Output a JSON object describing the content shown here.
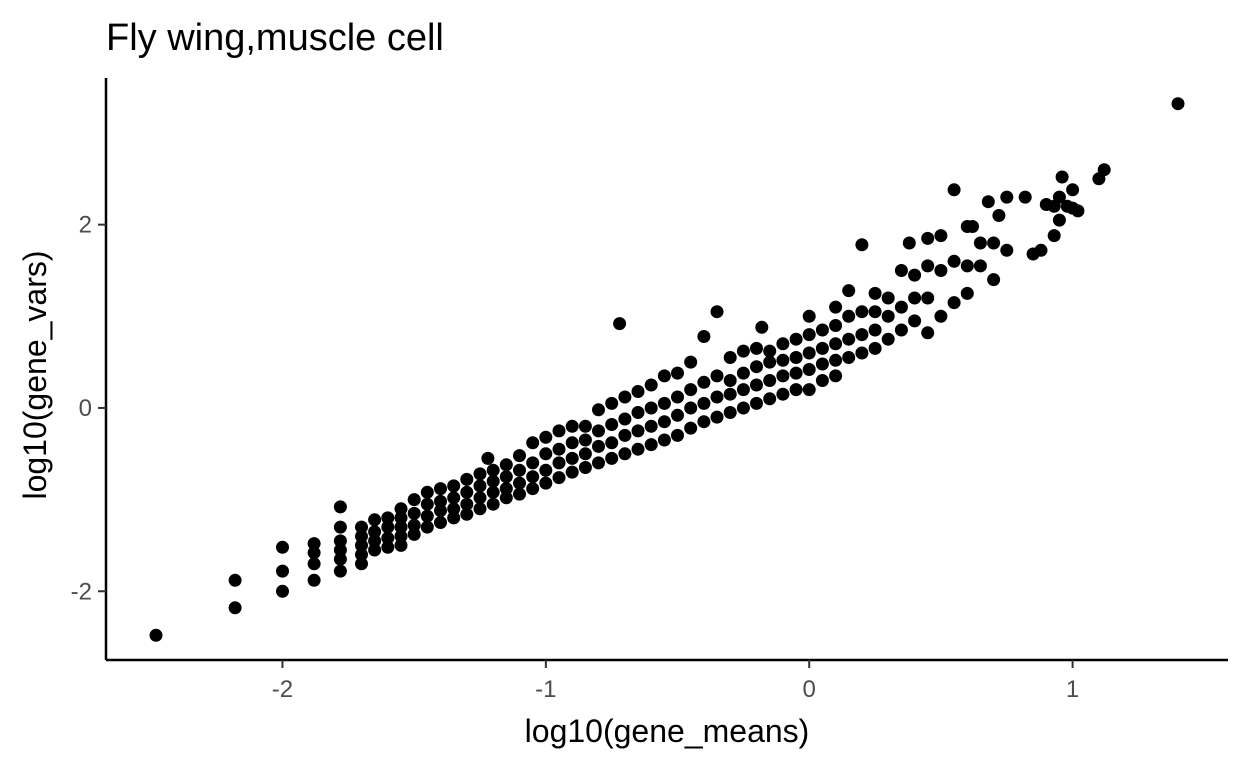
{
  "chart_data": {
    "type": "scatter",
    "title": "Fly wing,muscle cell",
    "xlabel": "log10(gene_means)",
    "ylabel": "log10(gene_vars)",
    "xlim": [
      -2.67,
      1.59
    ],
    "ylim": [
      -2.75,
      3.6
    ],
    "x_ticks": [
      -2,
      -1,
      0,
      1
    ],
    "y_ticks": [
      -2,
      0,
      2
    ],
    "x_tick_labels": [
      "-2",
      "-1",
      "0",
      "1"
    ],
    "y_tick_labels": [
      "-2",
      "0",
      "2"
    ],
    "grid": false,
    "legend": "none",
    "point_color": "#000000",
    "series": [
      {
        "points": [
          [
            -2.48,
            -2.48
          ],
          [
            -2.18,
            -1.88
          ],
          [
            -2.18,
            -2.18
          ],
          [
            -2.0,
            -1.52
          ],
          [
            -2.0,
            -1.78
          ],
          [
            -2.0,
            -2.0
          ],
          [
            -1.88,
            -1.48
          ],
          [
            -1.88,
            -1.58
          ],
          [
            -1.88,
            -1.7
          ],
          [
            -1.88,
            -1.88
          ],
          [
            -1.78,
            -1.08
          ],
          [
            -1.78,
            -1.3
          ],
          [
            -1.78,
            -1.45
          ],
          [
            -1.78,
            -1.55
          ],
          [
            -1.78,
            -1.65
          ],
          [
            -1.78,
            -1.78
          ],
          [
            -1.7,
            -1.3
          ],
          [
            -1.7,
            -1.4
          ],
          [
            -1.7,
            -1.5
          ],
          [
            -1.7,
            -1.6
          ],
          [
            -1.7,
            -1.7
          ],
          [
            -1.65,
            -1.22
          ],
          [
            -1.65,
            -1.35
          ],
          [
            -1.65,
            -1.45
          ],
          [
            -1.65,
            -1.55
          ],
          [
            -1.6,
            -1.2
          ],
          [
            -1.6,
            -1.3
          ],
          [
            -1.6,
            -1.42
          ],
          [
            -1.6,
            -1.52
          ],
          [
            -1.55,
            -1.1
          ],
          [
            -1.55,
            -1.2
          ],
          [
            -1.55,
            -1.3
          ],
          [
            -1.55,
            -1.4
          ],
          [
            -1.55,
            -1.5
          ],
          [
            -1.5,
            -1.0
          ],
          [
            -1.5,
            -1.15
          ],
          [
            -1.5,
            -1.28
          ],
          [
            -1.5,
            -1.38
          ],
          [
            -1.45,
            -0.92
          ],
          [
            -1.45,
            -1.05
          ],
          [
            -1.45,
            -1.18
          ],
          [
            -1.45,
            -1.3
          ],
          [
            -1.4,
            -0.88
          ],
          [
            -1.4,
            -1.02
          ],
          [
            -1.4,
            -1.12
          ],
          [
            -1.4,
            -1.25
          ],
          [
            -1.35,
            -0.85
          ],
          [
            -1.35,
            -0.98
          ],
          [
            -1.35,
            -1.1
          ],
          [
            -1.35,
            -1.2
          ],
          [
            -1.3,
            -0.78
          ],
          [
            -1.3,
            -0.92
          ],
          [
            -1.3,
            -1.05
          ],
          [
            -1.3,
            -1.16
          ],
          [
            -1.25,
            -0.72
          ],
          [
            -1.25,
            -0.85
          ],
          [
            -1.25,
            -0.98
          ],
          [
            -1.25,
            -1.1
          ],
          [
            -1.2,
            -0.68
          ],
          [
            -1.2,
            -0.8
          ],
          [
            -1.2,
            -0.92
          ],
          [
            -1.2,
            -1.05
          ],
          [
            -1.22,
            -0.55
          ],
          [
            -1.15,
            -0.62
          ],
          [
            -1.15,
            -0.75
          ],
          [
            -1.15,
            -0.88
          ],
          [
            -1.15,
            -0.98
          ],
          [
            -1.1,
            -0.52
          ],
          [
            -1.1,
            -0.68
          ],
          [
            -1.1,
            -0.82
          ],
          [
            -1.1,
            -0.94
          ],
          [
            -1.05,
            -0.38
          ],
          [
            -1.05,
            -0.6
          ],
          [
            -1.05,
            -0.75
          ],
          [
            -1.05,
            -0.88
          ],
          [
            -1.0,
            -0.32
          ],
          [
            -1.0,
            -0.5
          ],
          [
            -1.0,
            -0.68
          ],
          [
            -1.0,
            -0.82
          ],
          [
            -0.95,
            -0.25
          ],
          [
            -0.95,
            -0.45
          ],
          [
            -0.95,
            -0.6
          ],
          [
            -0.95,
            -0.76
          ],
          [
            -0.9,
            -0.2
          ],
          [
            -0.9,
            -0.38
          ],
          [
            -0.9,
            -0.55
          ],
          [
            -0.9,
            -0.7
          ],
          [
            -0.85,
            -0.2
          ],
          [
            -0.85,
            -0.35
          ],
          [
            -0.85,
            -0.5
          ],
          [
            -0.85,
            -0.65
          ],
          [
            -0.8,
            -0.02
          ],
          [
            -0.8,
            -0.25
          ],
          [
            -0.8,
            -0.42
          ],
          [
            -0.8,
            -0.6
          ],
          [
            -0.75,
            0.05
          ],
          [
            -0.75,
            -0.18
          ],
          [
            -0.75,
            -0.38
          ],
          [
            -0.75,
            -0.55
          ],
          [
            -0.72,
            0.92
          ],
          [
            -0.7,
            0.12
          ],
          [
            -0.7,
            -0.12
          ],
          [
            -0.7,
            -0.3
          ],
          [
            -0.7,
            -0.5
          ],
          [
            -0.65,
            0.18
          ],
          [
            -0.65,
            -0.05
          ],
          [
            -0.65,
            -0.25
          ],
          [
            -0.65,
            -0.45
          ],
          [
            -0.6,
            0.25
          ],
          [
            -0.6,
            0.0
          ],
          [
            -0.6,
            -0.2
          ],
          [
            -0.6,
            -0.4
          ],
          [
            -0.55,
            0.35
          ],
          [
            -0.55,
            0.05
          ],
          [
            -0.55,
            -0.15
          ],
          [
            -0.55,
            -0.35
          ],
          [
            -0.5,
            0.38
          ],
          [
            -0.5,
            0.12
          ],
          [
            -0.5,
            -0.08
          ],
          [
            -0.5,
            -0.3
          ],
          [
            -0.45,
            0.5
          ],
          [
            -0.45,
            0.2
          ],
          [
            -0.45,
            0.0
          ],
          [
            -0.45,
            -0.22
          ],
          [
            -0.4,
            0.78
          ],
          [
            -0.4,
            0.28
          ],
          [
            -0.4,
            0.05
          ],
          [
            -0.4,
            -0.15
          ],
          [
            -0.35,
            1.05
          ],
          [
            -0.35,
            0.35
          ],
          [
            -0.35,
            0.12
          ],
          [
            -0.35,
            -0.1
          ],
          [
            -0.3,
            0.55
          ],
          [
            -0.3,
            0.3
          ],
          [
            -0.3,
            0.15
          ],
          [
            -0.3,
            -0.05
          ],
          [
            -0.25,
            0.62
          ],
          [
            -0.25,
            0.38
          ],
          [
            -0.25,
            0.2
          ],
          [
            -0.25,
            0.0
          ],
          [
            -0.2,
            0.65
          ],
          [
            -0.2,
            0.45
          ],
          [
            -0.2,
            0.25
          ],
          [
            -0.2,
            0.05
          ],
          [
            -0.18,
            0.88
          ],
          [
            -0.15,
            0.62
          ],
          [
            -0.15,
            0.5
          ],
          [
            -0.15,
            0.3
          ],
          [
            -0.15,
            0.1
          ],
          [
            -0.1,
            0.7
          ],
          [
            -0.1,
            0.52
          ],
          [
            -0.1,
            0.35
          ],
          [
            -0.1,
            0.15
          ],
          [
            -0.05,
            0.75
          ],
          [
            -0.05,
            0.55
          ],
          [
            -0.05,
            0.38
          ],
          [
            -0.05,
            0.2
          ],
          [
            0.0,
            1.0
          ],
          [
            0.0,
            0.8
          ],
          [
            0.0,
            0.6
          ],
          [
            0.0,
            0.42
          ],
          [
            0.0,
            0.2
          ],
          [
            0.05,
            0.85
          ],
          [
            0.05,
            0.65
          ],
          [
            0.05,
            0.48
          ],
          [
            0.05,
            0.3
          ],
          [
            0.1,
            1.1
          ],
          [
            0.1,
            0.9
          ],
          [
            0.1,
            0.7
          ],
          [
            0.1,
            0.52
          ],
          [
            0.1,
            0.35
          ],
          [
            0.15,
            1.28
          ],
          [
            0.15,
            1.0
          ],
          [
            0.15,
            0.75
          ],
          [
            0.15,
            0.55
          ],
          [
            0.2,
            1.78
          ],
          [
            0.2,
            1.05
          ],
          [
            0.2,
            0.8
          ],
          [
            0.2,
            0.6
          ],
          [
            0.25,
            1.25
          ],
          [
            0.25,
            1.05
          ],
          [
            0.25,
            0.85
          ],
          [
            0.25,
            0.65
          ],
          [
            0.3,
            1.2
          ],
          [
            0.3,
            1.0
          ],
          [
            0.3,
            0.75
          ],
          [
            0.35,
            1.5
          ],
          [
            0.35,
            1.1
          ],
          [
            0.35,
            0.85
          ],
          [
            0.38,
            1.8
          ],
          [
            0.4,
            1.45
          ],
          [
            0.4,
            1.2
          ],
          [
            0.4,
            0.95
          ],
          [
            0.45,
            1.85
          ],
          [
            0.45,
            1.55
          ],
          [
            0.45,
            1.2
          ],
          [
            0.45,
            0.82
          ],
          [
            0.5,
            1.88
          ],
          [
            0.5,
            1.5
          ],
          [
            0.5,
            1.0
          ],
          [
            0.55,
            2.38
          ],
          [
            0.55,
            1.6
          ],
          [
            0.55,
            1.15
          ],
          [
            0.6,
            1.98
          ],
          [
            0.6,
            1.55
          ],
          [
            0.6,
            1.25
          ],
          [
            0.62,
            1.98
          ],
          [
            0.65,
            1.8
          ],
          [
            0.65,
            1.55
          ],
          [
            0.68,
            2.25
          ],
          [
            0.7,
            1.8
          ],
          [
            0.7,
            1.4
          ],
          [
            0.72,
            2.1
          ],
          [
            0.75,
            2.3
          ],
          [
            0.75,
            1.72
          ],
          [
            0.82,
            2.3
          ],
          [
            0.85,
            1.68
          ],
          [
            0.88,
            1.72
          ],
          [
            0.9,
            2.22
          ],
          [
            0.93,
            2.2
          ],
          [
            0.93,
            1.88
          ],
          [
            0.95,
            2.3
          ],
          [
            0.95,
            2.05
          ],
          [
            0.96,
            2.52
          ],
          [
            0.98,
            2.2
          ],
          [
            1.0,
            2.18
          ],
          [
            1.02,
            2.15
          ],
          [
            1.0,
            2.38
          ],
          [
            1.1,
            2.5
          ],
          [
            1.12,
            2.6
          ],
          [
            1.4,
            3.32
          ]
        ]
      }
    ]
  }
}
